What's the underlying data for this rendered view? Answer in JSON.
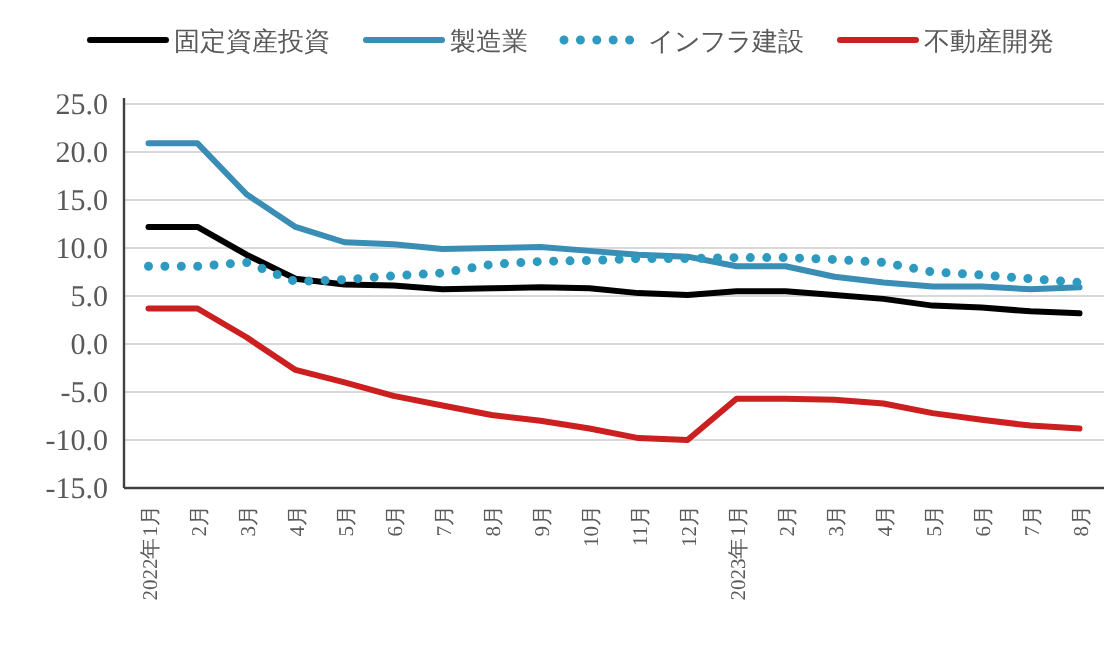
{
  "chart_data": {
    "type": "line",
    "categories": [
      "2022年1月",
      "2月",
      "3月",
      "4月",
      "5月",
      "6月",
      "7月",
      "8月",
      "9月",
      "10月",
      "11月",
      "12月",
      "2023年1月",
      "2月",
      "3月",
      "4月",
      "5月",
      "6月",
      "7月",
      "8月"
    ],
    "ylim": [
      -15,
      25
    ],
    "yticks": [
      {
        "value": -15,
        "label": "-15.0"
      },
      {
        "value": -10,
        "label": "-10.0"
      },
      {
        "value": -5,
        "label": "-5.0"
      },
      {
        "value": 0,
        "label": "0.0"
      },
      {
        "value": 5,
        "label": "5.0"
      },
      {
        "value": 10,
        "label": "10.0"
      },
      {
        "value": 15,
        "label": "15.0"
      },
      {
        "value": 20,
        "label": "20.0"
      },
      {
        "value": 25,
        "label": "25.0"
      }
    ],
    "grid": "y",
    "legend": "top",
    "marker": "none",
    "series": [
      {
        "name": "固定資産投資",
        "color": "#000000",
        "line_style": "solid",
        "values": [
          12.2,
          12.2,
          9.3,
          6.8,
          6.2,
          6.1,
          5.7,
          5.8,
          5.9,
          5.8,
          5.3,
          5.1,
          5.5,
          5.5,
          5.1,
          4.7,
          4.0,
          3.8,
          3.4,
          3.2
        ]
      },
      {
        "name": "製造業",
        "color": "#3a8db5",
        "line_style": "solid",
        "values": [
          20.9,
          20.9,
          15.6,
          12.2,
          10.6,
          10.4,
          9.9,
          10.0,
          10.1,
          9.7,
          9.3,
          9.1,
          8.1,
          8.1,
          7.0,
          6.4,
          6.0,
          6.0,
          5.7,
          5.9
        ]
      },
      {
        "name": "インフラ建設",
        "color": "#2e9ac0",
        "line_style": "dotted",
        "values": [
          8.1,
          8.1,
          8.5,
          6.5,
          6.7,
          7.1,
          7.4,
          8.3,
          8.6,
          8.7,
          8.9,
          8.9,
          9.0,
          9.0,
          8.8,
          8.5,
          7.5,
          7.2,
          6.8,
          6.4
        ]
      },
      {
        "name": "不動産開発",
        "color": "#cc1f1f",
        "line_style": "solid",
        "values": [
          3.7,
          3.7,
          0.7,
          -2.7,
          -4.0,
          -5.4,
          -6.4,
          -7.4,
          -8.0,
          -8.8,
          -9.8,
          -10.0,
          -5.7,
          -5.7,
          -5.8,
          -6.2,
          -7.2,
          -7.9,
          -8.5,
          -8.8
        ]
      }
    ]
  }
}
